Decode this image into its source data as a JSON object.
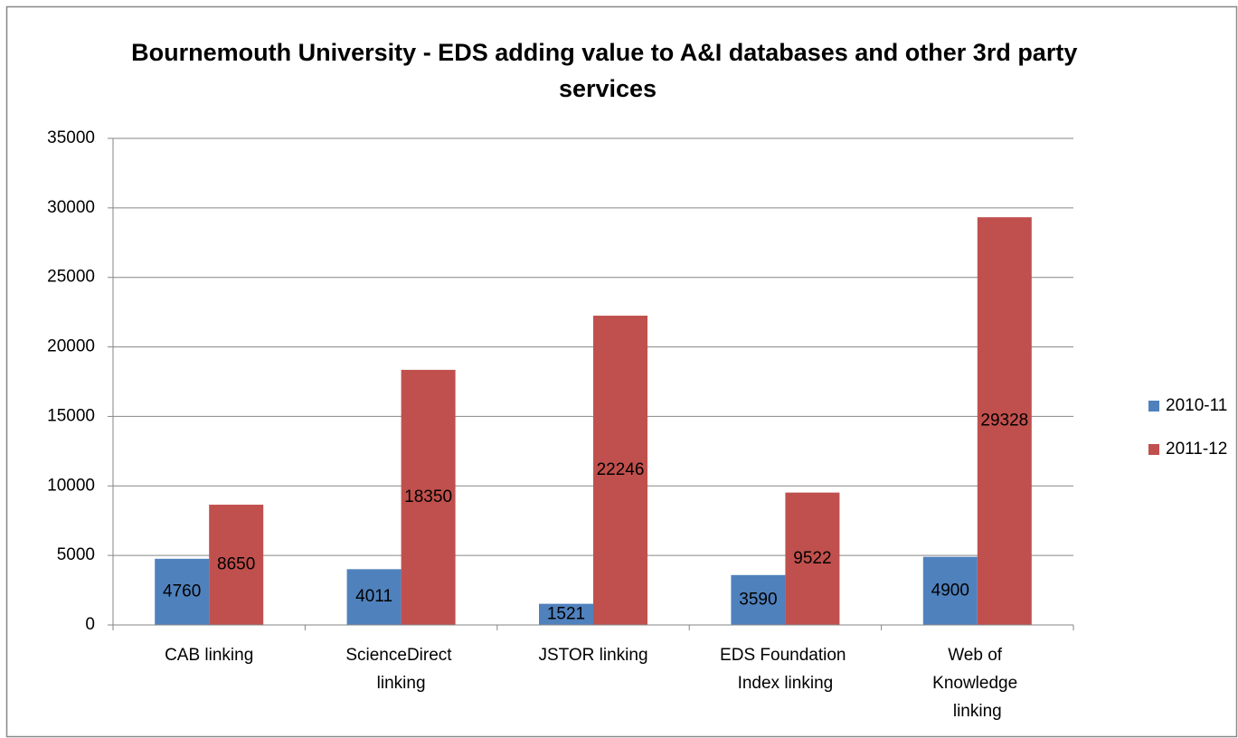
{
  "chart_data": {
    "type": "bar",
    "title": "Bournemouth University - EDS adding value to A&I databases and other 3rd party services",
    "categories": [
      "CAB linking",
      "ScienceDirect linking",
      "JSTOR linking",
      "EDS Foundation Index linking",
      "Web of Knowledge linking"
    ],
    "series": [
      {
        "name": "2010-11",
        "color": "#4f81bd",
        "values": [
          4760,
          4011,
          1521,
          3590,
          4900
        ]
      },
      {
        "name": "2011-12",
        "color": "#c0504d",
        "values": [
          8650,
          18350,
          22246,
          9522,
          29328
        ]
      }
    ],
    "ylim": [
      0,
      35000
    ],
    "yticks": [
      0,
      5000,
      10000,
      15000,
      20000,
      25000,
      30000,
      35000
    ],
    "grid": true,
    "legend": "right"
  }
}
